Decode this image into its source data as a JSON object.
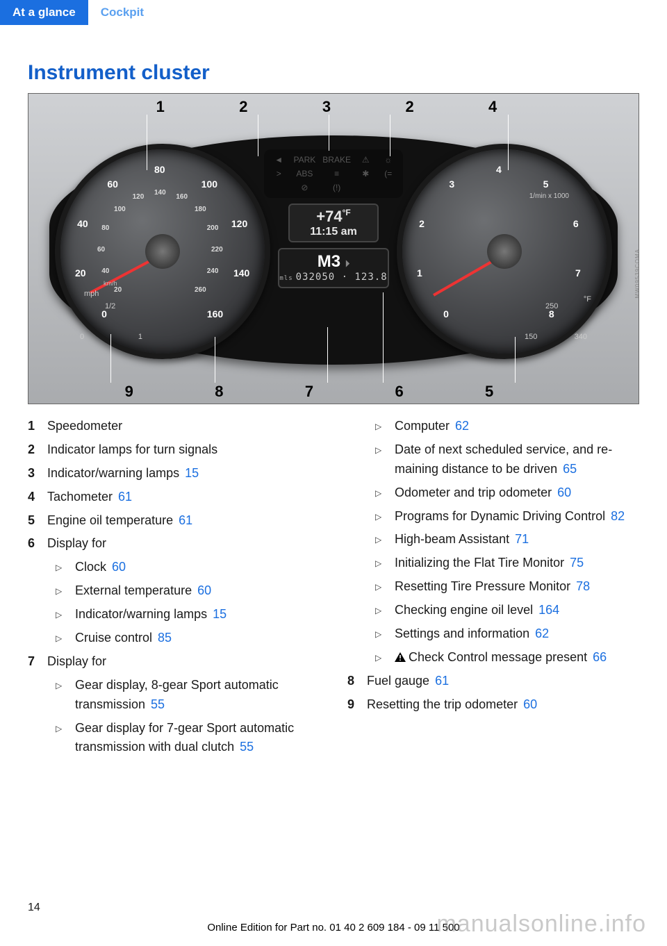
{
  "header": {
    "tab": "At a glance",
    "sub": "Cockpit"
  },
  "heading": "Instrument cluster",
  "pagenum": "14",
  "footer": "Online Edition for Part no. 01 40 2 609 184 - 09 11 500",
  "watermark": "manualsonline.info",
  "figure": {
    "callouts_top": [
      "1",
      "2",
      "3",
      "2",
      "4"
    ],
    "callouts_bottom": [
      "9",
      "8",
      "7",
      "6",
      "5"
    ],
    "speedo_outer": [
      "0",
      "20",
      "40",
      "60",
      "80",
      "100",
      "120",
      "140",
      "160"
    ],
    "speedo_inner": [
      "20",
      "40",
      "60",
      "80",
      "100",
      "120",
      "140",
      "160",
      "180",
      "200",
      "220",
      "240",
      "260"
    ],
    "speedo_unit_outer": "mph",
    "speedo_unit_inner": "km/h",
    "tach_ticks": [
      "0",
      "1",
      "2",
      "3",
      "4",
      "5",
      "6",
      "7",
      "8"
    ],
    "tach_unit": "1/min x 1000",
    "temp_ticks": [
      "150",
      "250",
      "340"
    ],
    "temp_unit": "°F",
    "fuel_ticks": [
      "0",
      "1/2",
      "1"
    ],
    "center_temp": "+74",
    "center_temp_unit": "°F",
    "center_time": "11:15 am",
    "gear": "M3",
    "odo_unit": "mls",
    "odo": "032050 · 123.8",
    "warn_labels": [
      "◄",
      "PARK",
      "BRAKE",
      "⚠",
      "☼",
      ">",
      "ABS",
      "≡",
      "✱",
      "(=",
      "",
      "⊘",
      "(!)",
      "",
      ""
    ],
    "image_code": "MW09539COMA"
  },
  "legend": [
    {
      "n": "1",
      "t": "Speedometer"
    },
    {
      "n": "2",
      "t": "Indicator lamps for turn signals"
    },
    {
      "n": "3",
      "t": "Indicator/warning lamps",
      "p": "15"
    },
    {
      "n": "4",
      "t": "Tachometer",
      "p": "61"
    },
    {
      "n": "5",
      "t": "Engine oil temperature",
      "p": "61"
    },
    {
      "n": "6",
      "t": "Display for"
    },
    {
      "sub": true,
      "t": "Clock",
      "p": "60"
    },
    {
      "sub": true,
      "t": "External temperature",
      "p": "60"
    },
    {
      "sub": true,
      "t": "Indicator/warning lamps",
      "p": "15"
    },
    {
      "sub": true,
      "t": "Cruise control",
      "p": "85"
    },
    {
      "n": "7",
      "t": "Display for"
    },
    {
      "sub": true,
      "t": "Gear display, 8-gear Sport automatic transmission",
      "p": "55"
    },
    {
      "sub": true,
      "t": "Gear display for 7-gear Sport automatic transmission with dual clutch",
      "p": "55"
    },
    {
      "sub": true,
      "t": "Computer",
      "p": "62"
    },
    {
      "sub": true,
      "t": "Date of next scheduled service, and re­maining distance to be driven",
      "p": "65"
    },
    {
      "sub": true,
      "t": "Odometer and trip odometer",
      "p": "60"
    },
    {
      "sub": true,
      "t": "Programs for Dynamic Driving Con­trol",
      "p": "82"
    },
    {
      "sub": true,
      "t": "High-beam Assistant",
      "p": "71"
    },
    {
      "sub": true,
      "t": "Initializing the Flat Tire Monitor",
      "p": "75"
    },
    {
      "sub": true,
      "t": "Resetting Tire Pressure Monitor",
      "p": "78"
    },
    {
      "sub": true,
      "t": "Checking engine oil level",
      "p": "164"
    },
    {
      "sub": true,
      "t": "Settings and information",
      "p": "62"
    },
    {
      "sub": true,
      "icon": true,
      "t": "Check Control message present",
      "p": "66"
    },
    {
      "n": "8",
      "t": "Fuel gauge",
      "p": "61"
    },
    {
      "n": "9",
      "t": "Resetting the trip odometer",
      "p": "60"
    }
  ]
}
